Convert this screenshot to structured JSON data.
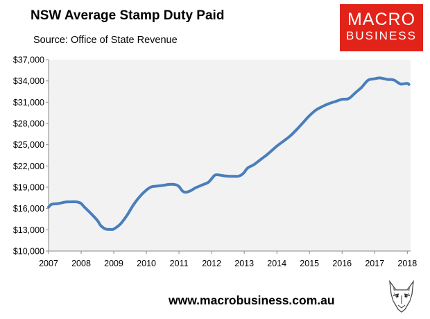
{
  "header": {
    "title": "NSW Average Stamp Duty Paid",
    "subtitle": "Source: Office of State Revenue"
  },
  "logo": {
    "line1": "MACRO",
    "line2": "BUSINESS"
  },
  "footer": {
    "url": "www.macrobusiness.com.au"
  },
  "colors": {
    "line": "#4a7ebb",
    "plot_bg": "#f2f2f2",
    "logo_bg": "#e2231a"
  },
  "chart_data": {
    "type": "line",
    "title": "NSW Average Stamp Duty Paid",
    "subtitle": "Source: Office of State Revenue",
    "xlabel": "",
    "ylabel": "",
    "xlim": [
      2007,
      2018.1
    ],
    "ylim": [
      10000,
      37000
    ],
    "x_ticks": [
      "2007",
      "2008",
      "2009",
      "2010",
      "2011",
      "2012",
      "2013",
      "2014",
      "2015",
      "2016",
      "2017",
      "2018"
    ],
    "y_ticks": [
      "$10,000",
      "$13,000",
      "$16,000",
      "$19,000",
      "$22,000",
      "$25,000",
      "$28,000",
      "$31,000",
      "$34,000",
      "$37,000"
    ],
    "grid": false,
    "series": [
      {
        "x": [
          2007.0,
          2007.1,
          2007.3,
          2007.5,
          2007.7,
          2007.8,
          2007.9,
          2008.0,
          2008.1,
          2008.3,
          2008.5,
          2008.6,
          2008.75,
          2008.9,
          2009.0,
          2009.2,
          2009.4,
          2009.6,
          2009.8,
          2010.0,
          2010.15,
          2010.3,
          2010.5,
          2010.7,
          2010.9,
          2011.0,
          2011.1,
          2011.2,
          2011.35,
          2011.5,
          2011.7,
          2011.9,
          2012.0,
          2012.1,
          2012.2,
          2012.4,
          2012.6,
          2012.8,
          2012.9,
          2013.0,
          2013.1,
          2013.3,
          2013.5,
          2013.7,
          2013.9,
          2014.0,
          2014.2,
          2014.4,
          2014.6,
          2014.8,
          2015.0,
          2015.2,
          2015.4,
          2015.6,
          2015.8,
          2016.0,
          2016.2,
          2016.4,
          2016.5,
          2016.6,
          2016.8,
          2017.0,
          2017.1,
          2017.2,
          2017.4,
          2017.5,
          2017.6,
          2017.7,
          2017.8,
          2017.9,
          2018.0,
          2018.05
        ],
        "y": [
          16200,
          16600,
          16700,
          16900,
          16950,
          16950,
          16900,
          16700,
          16200,
          15300,
          14300,
          13600,
          13100,
          13050,
          13100,
          13800,
          15000,
          16500,
          17700,
          18600,
          19050,
          19150,
          19250,
          19400,
          19350,
          19100,
          18500,
          18300,
          18500,
          18900,
          19300,
          19700,
          20200,
          20700,
          20750,
          20600,
          20550,
          20550,
          20700,
          21100,
          21700,
          22200,
          22900,
          23600,
          24400,
          24800,
          25500,
          26200,
          27100,
          28100,
          29100,
          29900,
          30400,
          30800,
          31100,
          31400,
          31500,
          32300,
          32700,
          33100,
          34100,
          34300,
          34400,
          34400,
          34200,
          34200,
          34100,
          33800,
          33550,
          33600,
          33650,
          33500
        ]
      }
    ]
  }
}
